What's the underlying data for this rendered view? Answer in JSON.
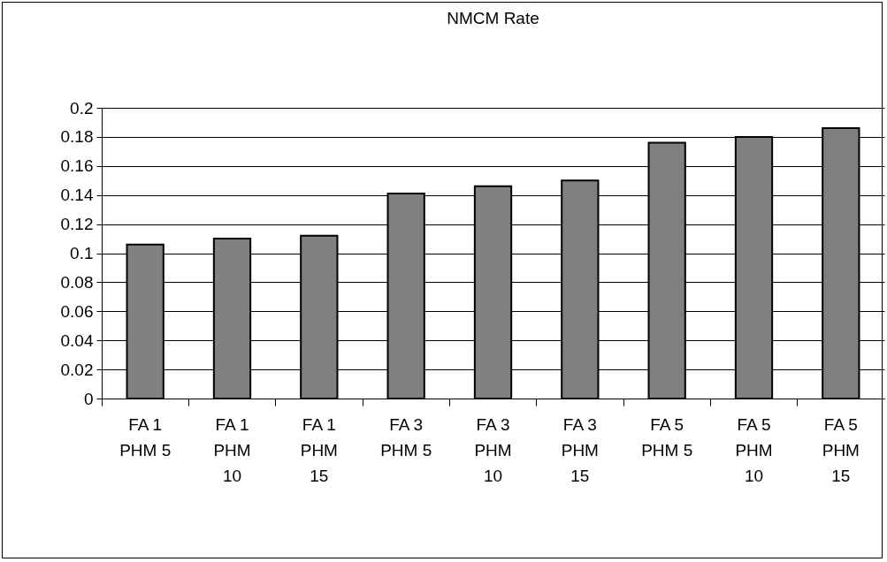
{
  "chart_data": {
    "type": "bar",
    "title": "NMCM Rate",
    "categories": [
      "FA 1 PHM 5",
      "FA 1 PHM 10",
      "FA 1 PHM 15",
      "FA 3 PHM 5",
      "FA 3 PHM 10",
      "FA 3 PHM 15",
      "FA 5 PHM 5",
      "FA 5 PHM 10",
      "FA 5 PHM 15"
    ],
    "values": [
      0.106,
      0.11,
      0.112,
      0.141,
      0.146,
      0.15,
      0.176,
      0.18,
      0.186
    ],
    "color": "#808080",
    "ylim": [
      0,
      0.2
    ],
    "yticks": [
      0,
      0.02,
      0.04,
      0.06,
      0.08,
      0.1,
      0.12,
      0.14,
      0.16,
      0.18,
      0.2
    ],
    "grid": "y",
    "legend": false
  }
}
